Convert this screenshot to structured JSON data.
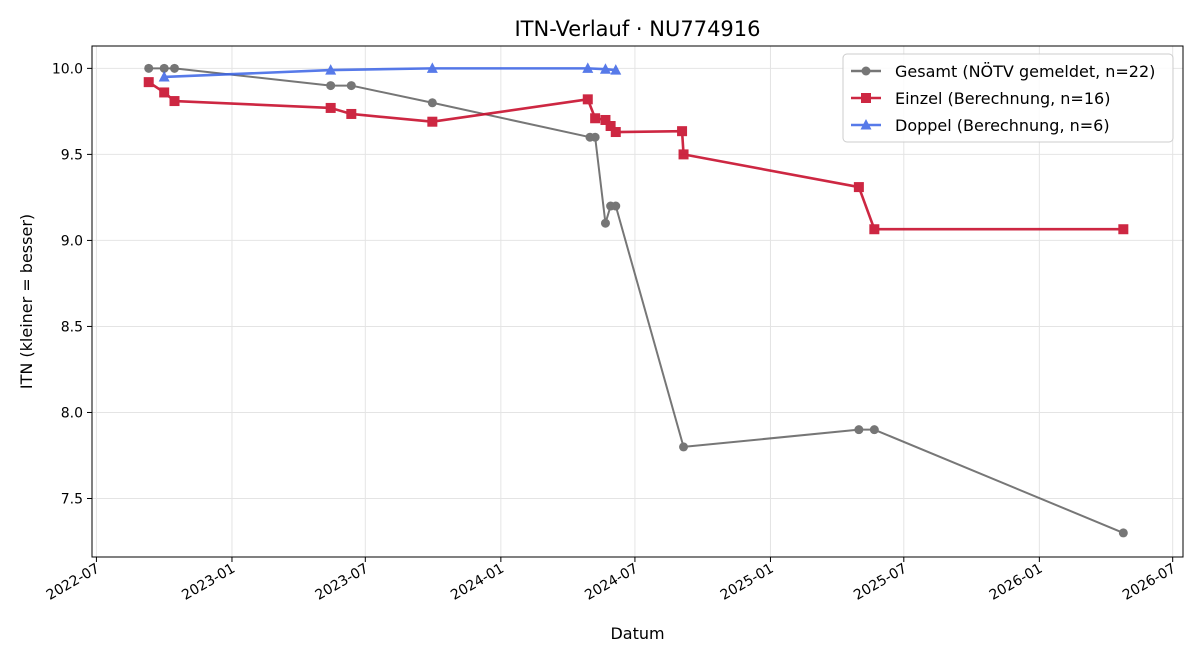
{
  "chart_data": {
    "type": "line",
    "title": "ITN-Verlauf · NU774916",
    "xlabel": "Datum",
    "ylabel": "ITN  (kleiner = besser)",
    "x_axis": {
      "type": "date",
      "range": [
        "2022-06-25",
        "2026-07-15"
      ],
      "ticks": [
        "2022-07",
        "2023-01",
        "2023-07",
        "2024-01",
        "2024-07",
        "2025-01",
        "2025-07",
        "2026-01",
        "2026-07"
      ]
    },
    "y_axis": {
      "range": [
        7.16,
        10.13
      ],
      "ticks": [
        "7.5",
        "8.0",
        "8.5",
        "9.0",
        "9.5",
        "10.0"
      ],
      "tick_values": [
        7.5,
        8.0,
        8.5,
        9.0,
        9.5,
        10.0
      ]
    },
    "grid": true,
    "legend_position": "top-right",
    "series": [
      {
        "name": "Gesamt (NÖTV gemeldet, n=22)",
        "color": "#555555",
        "opacity": 0.8,
        "marker": "circle",
        "x": [
          "2022-09-10",
          "2022-10-01",
          "2022-10-15",
          "2023-05-15",
          "2023-06-12",
          "2023-09-30",
          "2024-05-01",
          "2024-05-08",
          "2024-05-22",
          "2024-05-29",
          "2024-06-05",
          "2024-09-05",
          "2025-05-01",
          "2025-05-22",
          "2026-04-25"
        ],
        "y": [
          10.0,
          10.0,
          10.0,
          9.9,
          9.9,
          9.8,
          9.6,
          9.6,
          9.1,
          9.2,
          9.2,
          7.8,
          7.9,
          7.9,
          7.3
        ]
      },
      {
        "name": "Einzel (Berechnung, n=16)",
        "color": "#c8102e",
        "opacity": 0.9,
        "marker": "square",
        "x": [
          "2022-09-10",
          "2022-10-01",
          "2022-10-15",
          "2023-05-15",
          "2023-06-12",
          "2023-09-30",
          "2024-04-28",
          "2024-05-08",
          "2024-05-22",
          "2024-05-29",
          "2024-06-05",
          "2024-09-03",
          "2024-09-05",
          "2025-05-01",
          "2025-05-22",
          "2026-04-25"
        ],
        "y": [
          9.92,
          9.86,
          9.81,
          9.77,
          9.735,
          9.69,
          9.82,
          9.71,
          9.7,
          9.665,
          9.63,
          9.635,
          9.5,
          9.31,
          9.065,
          9.065
        ]
      },
      {
        "name": "Doppel (Berechnung, n=6)",
        "color": "#3a63e6",
        "opacity": 0.85,
        "marker": "triangle",
        "x": [
          "2022-10-01",
          "2023-05-15",
          "2023-09-30",
          "2024-04-28",
          "2024-05-22",
          "2024-06-05"
        ],
        "y": [
          9.95,
          9.99,
          10.0,
          10.0,
          9.995,
          9.99
        ]
      }
    ]
  }
}
